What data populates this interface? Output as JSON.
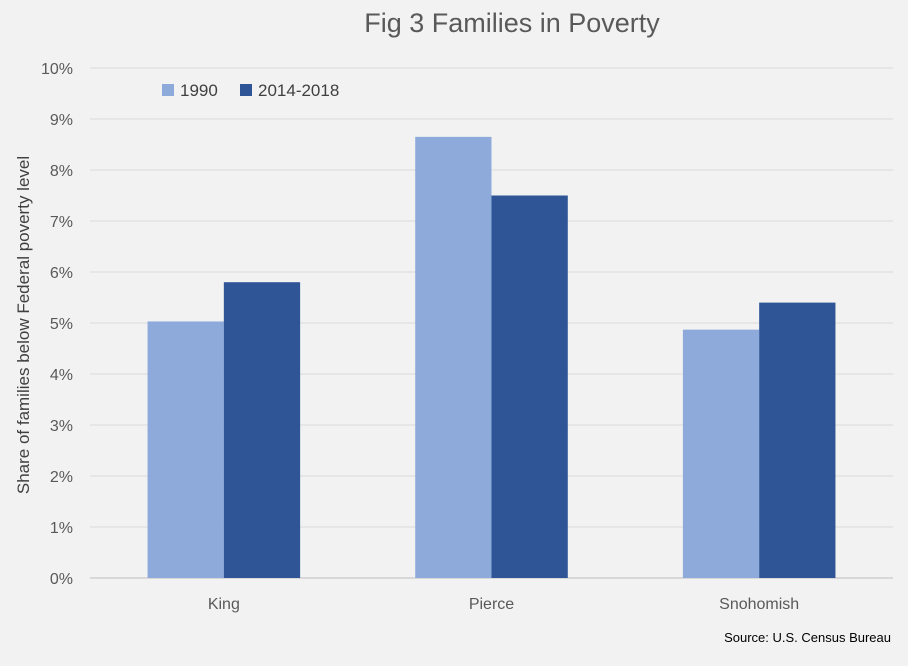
{
  "chart_data": {
    "type": "bar",
    "title": "Fig 3 Families in Poverty",
    "ylabel": "Share of families below Federal poverty level",
    "xlabel": "",
    "categories": [
      "King",
      "Pierce",
      "Snohomish"
    ],
    "series": [
      {
        "name": "1990",
        "values": [
          5.03,
          8.65,
          4.87
        ],
        "color": "#8eaadb"
      },
      {
        "name": "2014-2018",
        "values": [
          5.8,
          7.5,
          5.4
        ],
        "color": "#2f5597"
      }
    ],
    "ylim": [
      0,
      10
    ],
    "yticks": [
      "0%",
      "1%",
      "2%",
      "3%",
      "4%",
      "5%",
      "6%",
      "7%",
      "8%",
      "9%",
      "10%"
    ],
    "y_unit": "%",
    "grid": true,
    "legend_position": "top-left",
    "source_note": "Source: U.S. Census Bureau"
  }
}
